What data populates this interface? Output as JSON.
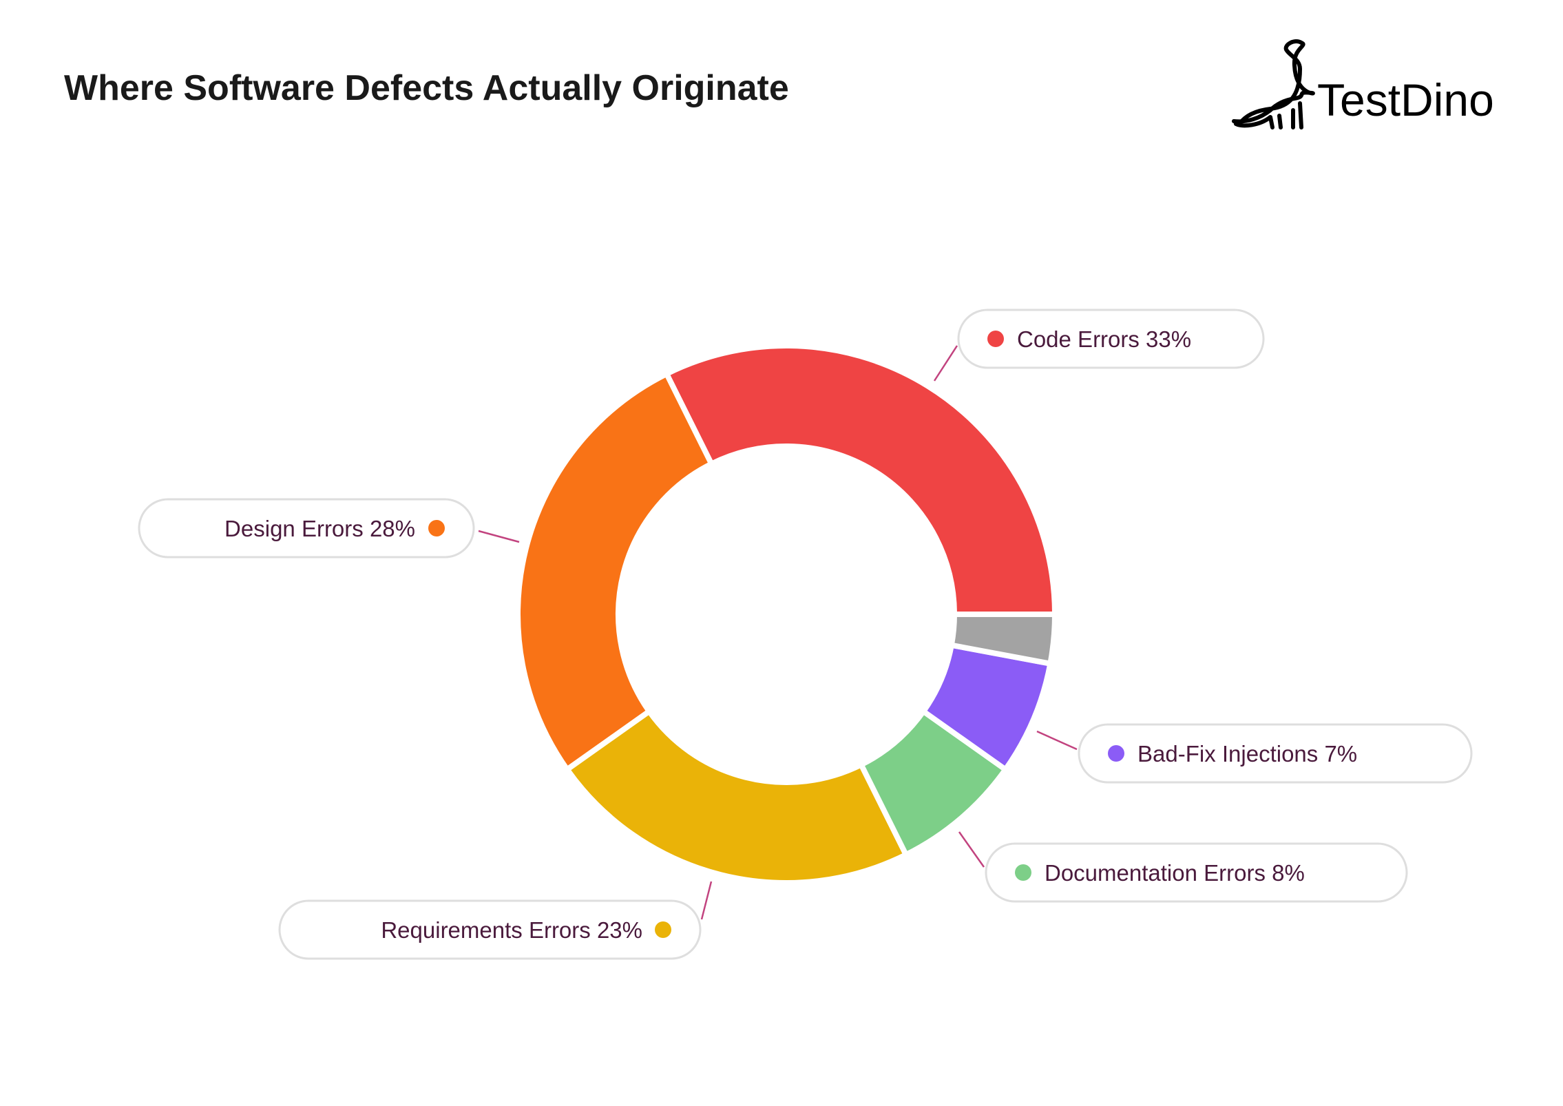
{
  "chart_data": {
    "type": "pie",
    "style": "donut",
    "title": "Where Software Defects Actually Originate",
    "start": "3 o'clock, counterclockwise",
    "slices": [
      {
        "name": "Code Errors",
        "label": "Code Errors 33%",
        "value": 33,
        "color": "#ef4444"
      },
      {
        "name": "Design Errors",
        "label": "Design Errors 28%",
        "value": 28,
        "color": "#f97316"
      },
      {
        "name": "Requirements Errors",
        "label": "Requirements Errors 23%",
        "value": 23,
        "color": "#eab308"
      },
      {
        "name": "Documentation Errors",
        "label": "Documentation Errors 8%",
        "value": 8,
        "color": "#7dcf88"
      },
      {
        "name": "Bad-Fix Injections",
        "label": "Bad-Fix Injections 7%",
        "value": 7,
        "color": "#8b5cf6"
      },
      {
        "name": "",
        "label": "",
        "value": 3,
        "color": "#a3a3a3"
      }
    ],
    "leader_color": "#c2437f"
  },
  "brand": {
    "name": "TestDino",
    "logo_icon": "dinosaur-icon"
  }
}
